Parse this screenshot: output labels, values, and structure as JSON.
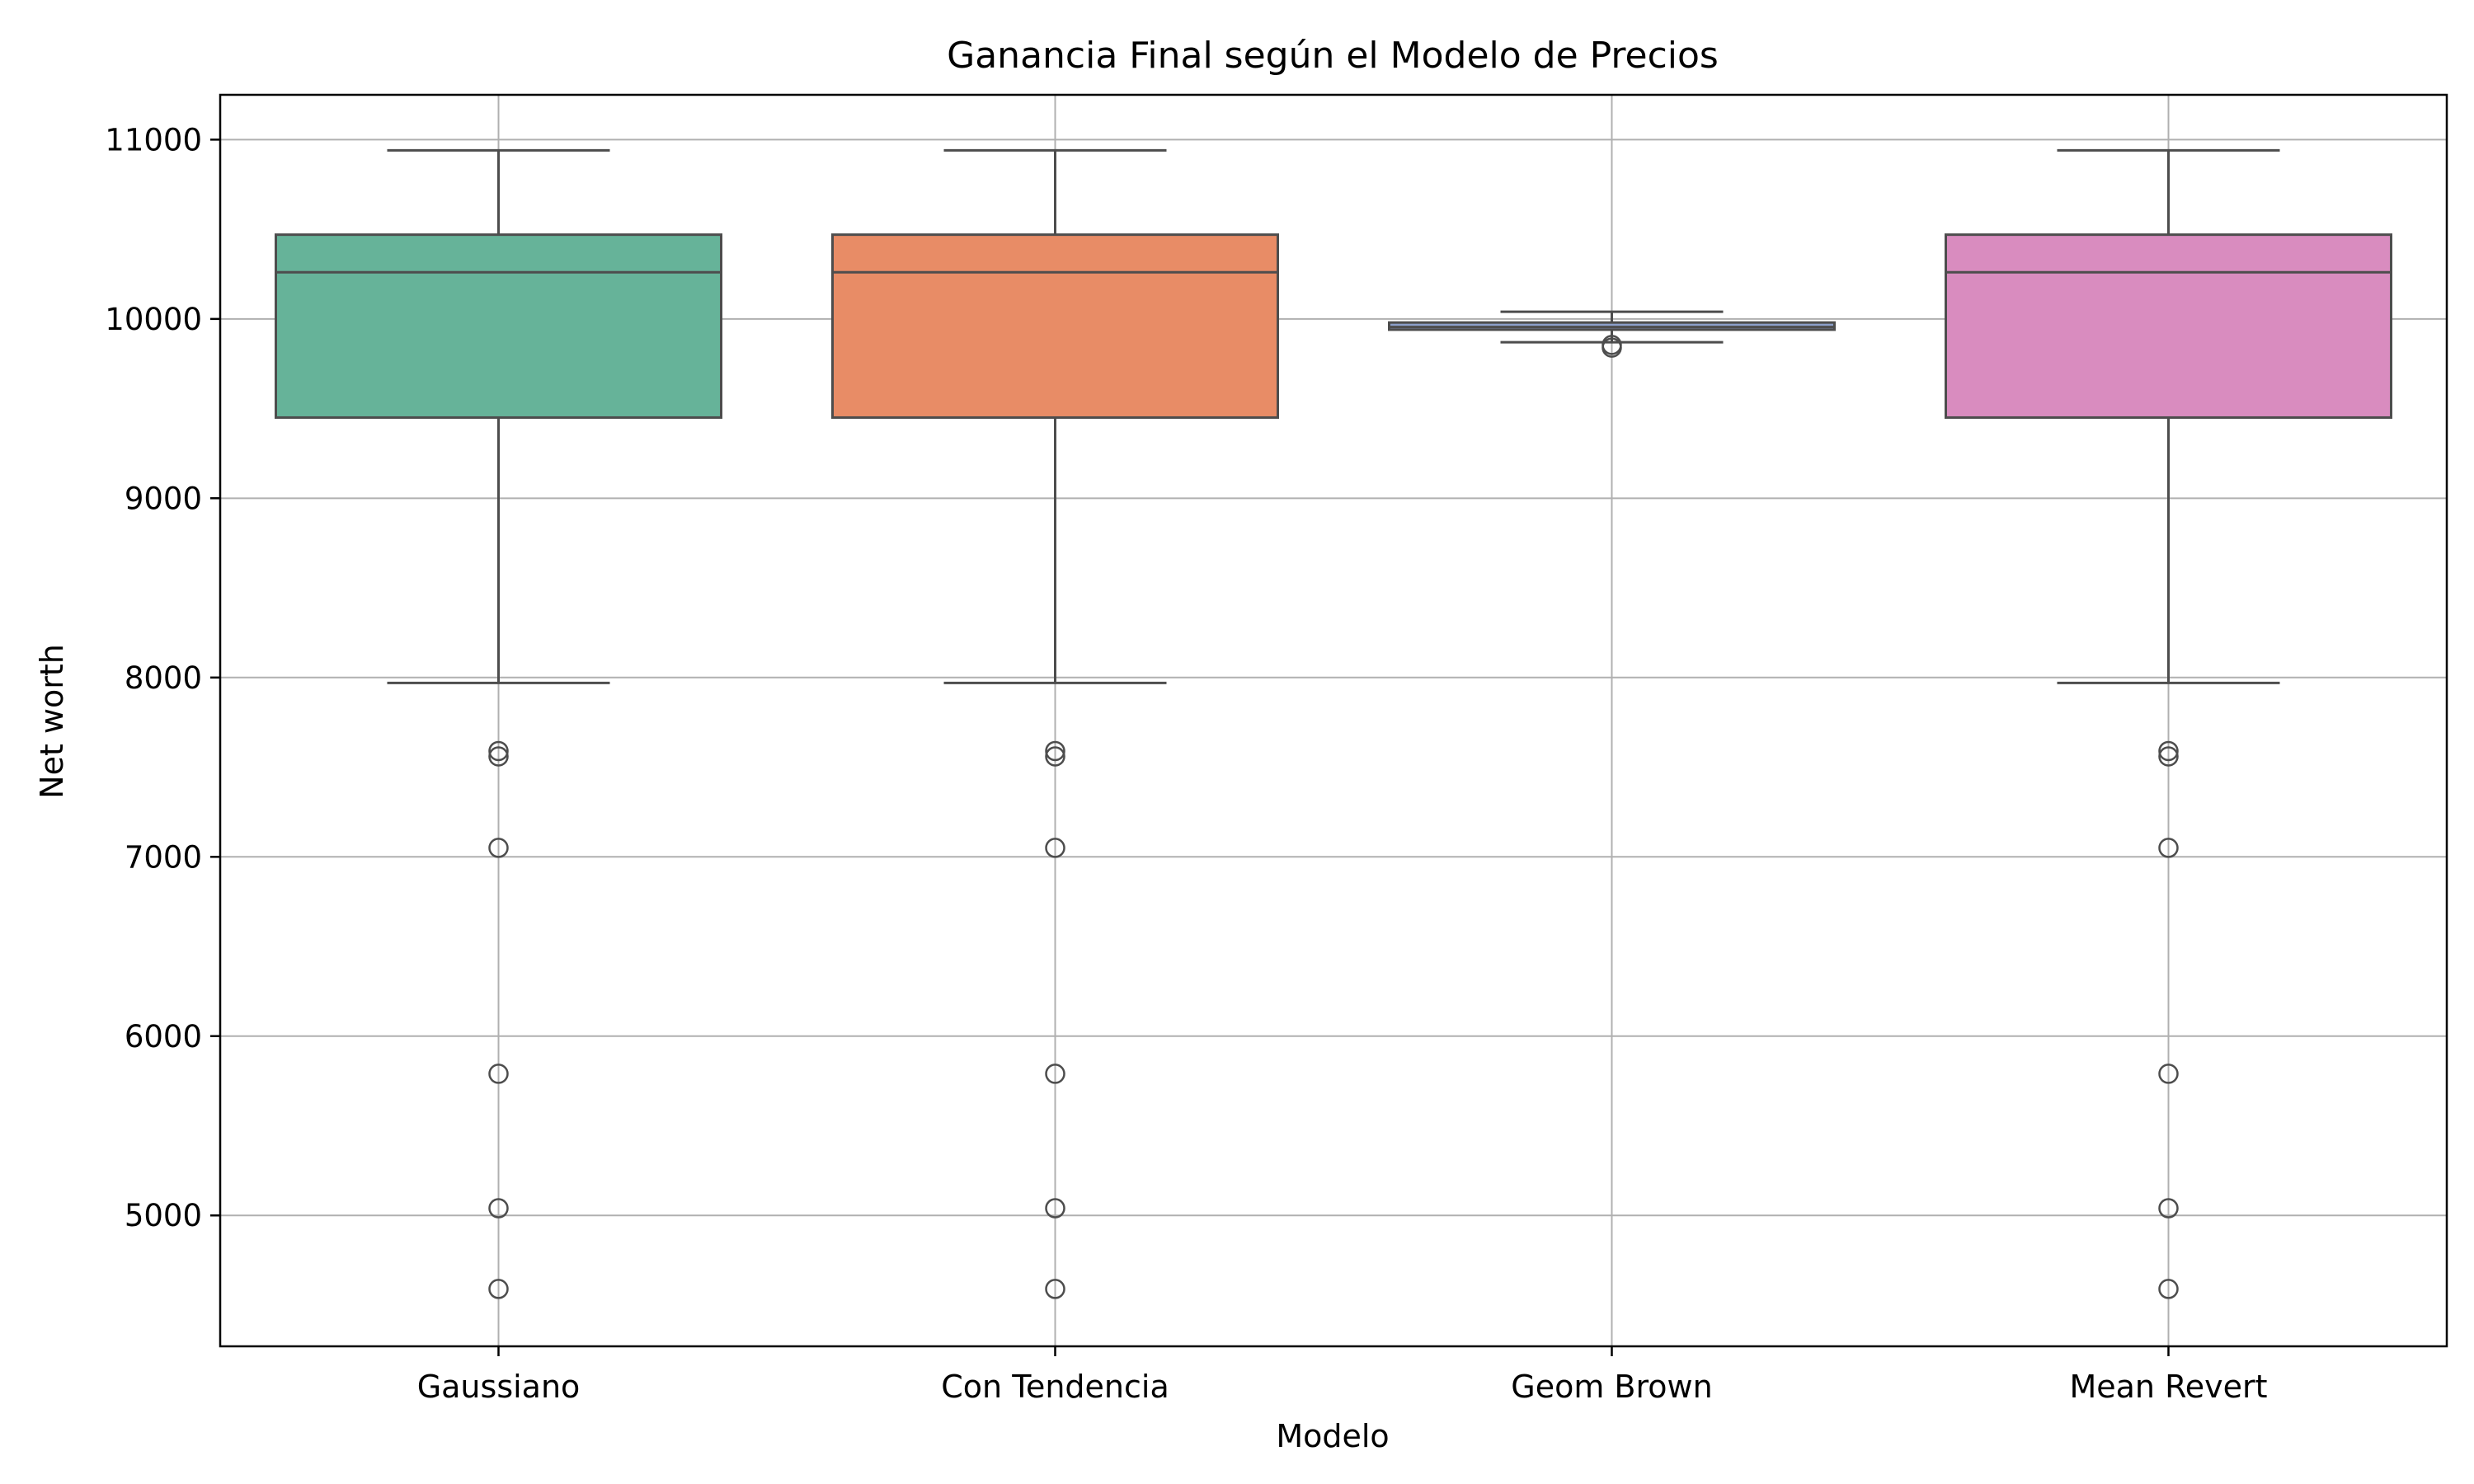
{
  "chart_data": {
    "type": "box",
    "title": "Ganancia Final según el Modelo de Precios",
    "xlabel": "Modelo",
    "ylabel": "Net worth",
    "ylim": [
      4270,
      11250
    ],
    "yticks": [
      5000,
      6000,
      7000,
      8000,
      9000,
      10000,
      11000
    ],
    "grid": true,
    "categories": [
      "Gaussiano",
      "Con Tendencia",
      "Geom Brown",
      "Mean Revert"
    ],
    "boxes": [
      {
        "q1": 9450,
        "median": 10260,
        "q3": 10470,
        "whisker_low": 7970,
        "whisker_high": 10940,
        "outliers": [
          7590,
          7560,
          7050,
          5790,
          5040,
          4590
        ],
        "color": "#66b399"
      },
      {
        "q1": 9450,
        "median": 10260,
        "q3": 10470,
        "whisker_low": 7970,
        "whisker_high": 10940,
        "outliers": [
          7590,
          7560,
          7050,
          5790,
          5040,
          4590
        ],
        "color": "#e88c66"
      },
      {
        "q1": 9940,
        "median": 9955,
        "q3": 9980,
        "whisker_low": 9870,
        "whisker_high": 10040,
        "outliers": [
          9855,
          9840
        ],
        "color": "#8c9fcb"
      },
      {
        "q1": 9450,
        "median": 10260,
        "q3": 10470,
        "whisker_low": 7970,
        "whisker_high": 10940,
        "outliers": [
          7590,
          7560,
          7050,
          5790,
          5040,
          4590
        ],
        "color": "#d98cbf"
      }
    ]
  }
}
